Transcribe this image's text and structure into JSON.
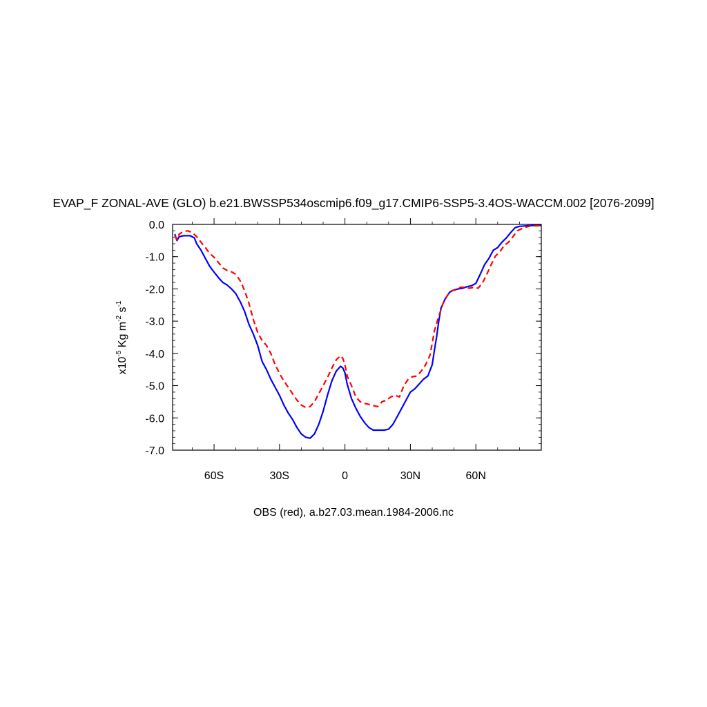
{
  "chart_data": {
    "type": "line",
    "title": "EVAP_F ZONAL-AVE (GLO) b.e21.BWSSP534oscmip6.f09_g17.CMIP6-SSP5-3.4OS-WACCM.002 [2076-2099]",
    "ylabel": {
      "prefix": "x10",
      "exp1": "-5",
      "mid1": " Kg m",
      "exp2": "-2",
      "mid2": " s",
      "exp3": "-1"
    },
    "footer": "OBS (red), a.b27.03.mean.1984-2006.nc",
    "xlim": [
      -79,
      90
    ],
    "ylim": [
      -7.0,
      0.0
    ],
    "x_ticks": [
      {
        "value": -60,
        "label": "60S"
      },
      {
        "value": -30,
        "label": "30S"
      },
      {
        "value": 0,
        "label": "0"
      },
      {
        "value": 30,
        "label": "30N"
      },
      {
        "value": 60,
        "label": "60N"
      }
    ],
    "y_ticks": [
      {
        "value": 0.0,
        "label": "0.0"
      },
      {
        "value": -1.0,
        "label": "-1.0"
      },
      {
        "value": -2.0,
        "label": "-2.0"
      },
      {
        "value": -3.0,
        "label": "-3.0"
      },
      {
        "value": -4.0,
        "label": "-4.0"
      },
      {
        "value": -5.0,
        "label": "-5.0"
      },
      {
        "value": -6.0,
        "label": "-6.0"
      },
      {
        "value": -7.0,
        "label": "-7.0"
      }
    ],
    "series": [
      {
        "color": "#0000ff",
        "dash": "solid",
        "points": [
          [
            -78,
            -0.3
          ],
          [
            -77,
            -0.5
          ],
          [
            -76,
            -0.38
          ],
          [
            -74,
            -0.35
          ],
          [
            -71,
            -0.35
          ],
          [
            -69,
            -0.42
          ],
          [
            -68,
            -0.6
          ],
          [
            -66,
            -0.8
          ],
          [
            -64,
            -1.05
          ],
          [
            -62,
            -1.3
          ],
          [
            -60,
            -1.48
          ],
          [
            -58,
            -1.65
          ],
          [
            -56,
            -1.8
          ],
          [
            -54,
            -1.88
          ],
          [
            -52,
            -2.0
          ],
          [
            -50,
            -2.15
          ],
          [
            -48,
            -2.4
          ],
          [
            -46,
            -2.7
          ],
          [
            -44,
            -3.1
          ],
          [
            -42,
            -3.4
          ],
          [
            -40,
            -3.75
          ],
          [
            -38,
            -4.25
          ],
          [
            -36,
            -4.5
          ],
          [
            -34,
            -4.8
          ],
          [
            -32,
            -5.05
          ],
          [
            -30,
            -5.3
          ],
          [
            -28,
            -5.6
          ],
          [
            -26,
            -5.85
          ],
          [
            -24,
            -6.05
          ],
          [
            -22,
            -6.3
          ],
          [
            -20,
            -6.5
          ],
          [
            -18,
            -6.6
          ],
          [
            -16,
            -6.63
          ],
          [
            -14,
            -6.5
          ],
          [
            -12,
            -6.2
          ],
          [
            -10,
            -5.8
          ],
          [
            -8,
            -5.3
          ],
          [
            -6,
            -4.85
          ],
          [
            -4,
            -4.55
          ],
          [
            -2,
            -4.4
          ],
          [
            -1,
            -4.45
          ],
          [
            0,
            -4.6
          ],
          [
            1,
            -4.95
          ],
          [
            3,
            -5.4
          ],
          [
            5,
            -5.7
          ],
          [
            7,
            -5.95
          ],
          [
            9,
            -6.15
          ],
          [
            11,
            -6.3
          ],
          [
            13,
            -6.38
          ],
          [
            15,
            -6.38
          ],
          [
            18,
            -6.38
          ],
          [
            20,
            -6.35
          ],
          [
            22,
            -6.2
          ],
          [
            24,
            -5.95
          ],
          [
            26,
            -5.7
          ],
          [
            28,
            -5.45
          ],
          [
            30,
            -5.2
          ],
          [
            32,
            -5.1
          ],
          [
            34,
            -4.95
          ],
          [
            36,
            -4.8
          ],
          [
            38,
            -4.7
          ],
          [
            40,
            -4.35
          ],
          [
            41,
            -3.9
          ],
          [
            42,
            -3.5
          ],
          [
            43,
            -3.0
          ],
          [
            44,
            -2.6
          ],
          [
            46,
            -2.3
          ],
          [
            48,
            -2.1
          ],
          [
            50,
            -2.03
          ],
          [
            52,
            -2.0
          ],
          [
            54,
            -1.98
          ],
          [
            56,
            -1.93
          ],
          [
            58,
            -1.9
          ],
          [
            60,
            -1.83
          ],
          [
            62,
            -1.55
          ],
          [
            64,
            -1.25
          ],
          [
            66,
            -1.05
          ],
          [
            68,
            -0.8
          ],
          [
            70,
            -0.72
          ],
          [
            72,
            -0.55
          ],
          [
            74,
            -0.42
          ],
          [
            76,
            -0.25
          ],
          [
            78,
            -0.1
          ],
          [
            80,
            -0.06
          ],
          [
            84,
            -0.04
          ],
          [
            88,
            -0.03
          ],
          [
            90,
            -0.03
          ]
        ]
      },
      {
        "color": "#ff0000",
        "dash": "dashed",
        "points": [
          [
            -78,
            -0.35
          ],
          [
            -77,
            -0.48
          ],
          [
            -76,
            -0.3
          ],
          [
            -74,
            -0.22
          ],
          [
            -72,
            -0.2
          ],
          [
            -70,
            -0.25
          ],
          [
            -68,
            -0.38
          ],
          [
            -66,
            -0.55
          ],
          [
            -64,
            -0.72
          ],
          [
            -62,
            -0.9
          ],
          [
            -60,
            -1.02
          ],
          [
            -58,
            -1.18
          ],
          [
            -56,
            -1.35
          ],
          [
            -54,
            -1.43
          ],
          [
            -52,
            -1.47
          ],
          [
            -50,
            -1.55
          ],
          [
            -48,
            -1.75
          ],
          [
            -46,
            -2.05
          ],
          [
            -44,
            -2.45
          ],
          [
            -42,
            -2.95
          ],
          [
            -40,
            -3.35
          ],
          [
            -38,
            -3.6
          ],
          [
            -36,
            -3.75
          ],
          [
            -34,
            -4.0
          ],
          [
            -32,
            -4.35
          ],
          [
            -30,
            -4.62
          ],
          [
            -28,
            -4.85
          ],
          [
            -26,
            -5.05
          ],
          [
            -24,
            -5.25
          ],
          [
            -22,
            -5.45
          ],
          [
            -20,
            -5.6
          ],
          [
            -18,
            -5.68
          ],
          [
            -16,
            -5.65
          ],
          [
            -14,
            -5.5
          ],
          [
            -12,
            -5.25
          ],
          [
            -10,
            -5.0
          ],
          [
            -8,
            -4.75
          ],
          [
            -6,
            -4.45
          ],
          [
            -4,
            -4.2
          ],
          [
            -2,
            -4.07
          ],
          [
            -1,
            -4.15
          ],
          [
            0,
            -4.35
          ],
          [
            1,
            -4.7
          ],
          [
            3,
            -5.0
          ],
          [
            5,
            -5.35
          ],
          [
            7,
            -5.5
          ],
          [
            9,
            -5.55
          ],
          [
            11,
            -5.58
          ],
          [
            13,
            -5.62
          ],
          [
            15,
            -5.65
          ],
          [
            17,
            -5.5
          ],
          [
            19,
            -5.45
          ],
          [
            21,
            -5.35
          ],
          [
            23,
            -5.3
          ],
          [
            25,
            -5.35
          ],
          [
            27,
            -5.0
          ],
          [
            29,
            -4.8
          ],
          [
            31,
            -4.72
          ],
          [
            33,
            -4.7
          ],
          [
            35,
            -4.55
          ],
          [
            37,
            -4.35
          ],
          [
            39,
            -4.05
          ],
          [
            41,
            -3.3
          ],
          [
            43,
            -2.85
          ],
          [
            45,
            -2.45
          ],
          [
            47,
            -2.2
          ],
          [
            49,
            -2.05
          ],
          [
            51,
            -2.03
          ],
          [
            53,
            -1.95
          ],
          [
            55,
            -1.95
          ],
          [
            57,
            -1.98
          ],
          [
            59,
            -1.95
          ],
          [
            61,
            -1.98
          ],
          [
            63,
            -1.82
          ],
          [
            65,
            -1.55
          ],
          [
            67,
            -1.25
          ],
          [
            69,
            -0.98
          ],
          [
            71,
            -0.85
          ],
          [
            73,
            -0.65
          ],
          [
            75,
            -0.55
          ],
          [
            77,
            -0.38
          ],
          [
            79,
            -0.2
          ],
          [
            82,
            -0.1
          ],
          [
            85,
            -0.05
          ],
          [
            90,
            -0.04
          ]
        ]
      }
    ],
    "grid": false,
    "legend": "none"
  }
}
